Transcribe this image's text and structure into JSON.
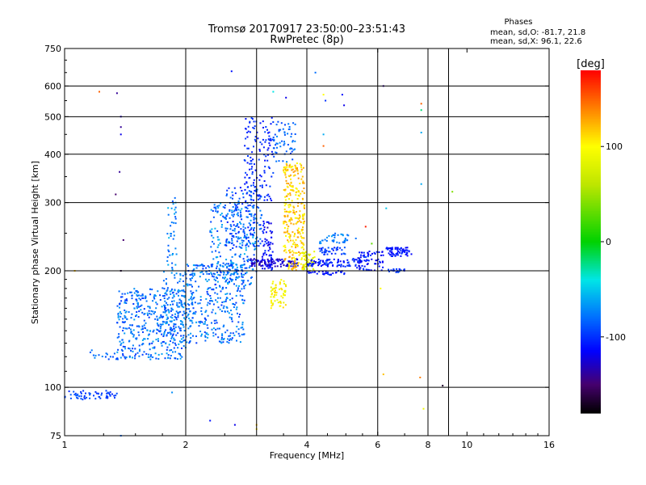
{
  "header": {
    "title_line1": "Tromsø 20170917 23:50:00–23:51:43",
    "title_line2": "RwPretec (8p)"
  },
  "phase_box": {
    "heading": "Phases",
    "line_o": "mean, sd,O: -81.7, 21.8",
    "line_x": "mean, sd,X:  96.1, 22.6"
  },
  "chart_data": {
    "type": "scatter",
    "xlabel": "Frequency [MHz]",
    "ylabel": "Stationary phase Virtual Height [km]",
    "x_scale": "log",
    "y_scale": "log",
    "xlim": [
      1,
      16
    ],
    "ylim": [
      75,
      750
    ],
    "x_ticks": [
      1,
      2,
      4,
      6,
      8,
      10,
      16
    ],
    "x_grid": [
      2,
      3,
      4,
      6,
      8,
      9
    ],
    "y_ticks": [
      75,
      100,
      200,
      300,
      400,
      500,
      600,
      750
    ],
    "y_grid": [
      100,
      200,
      300,
      400,
      500,
      600
    ],
    "grid": true,
    "colorbar": {
      "label": "[deg]",
      "range": [
        -180,
        180
      ],
      "ticks": [
        100,
        0,
        -100
      ]
    },
    "clusters": [
      {
        "name": "",
        "x": [
          1.0,
          1.35
        ],
        "y": [
          93,
          98
        ],
        "phase": [
          -105,
          -85
        ],
        "n": 60
      },
      {
        "name": "",
        "x": [
          1.1,
          1.35
        ],
        "y": [
          118,
          125
        ],
        "phase": [
          -95,
          -70
        ],
        "n": 15
      },
      {
        "name": "",
        "x": [
          1.35,
          2.0
        ],
        "y": [
          118,
          180
        ],
        "phase": [
          -100,
          -60
        ],
        "n": 420
      },
      {
        "name": "",
        "x": [
          1.75,
          2.1
        ],
        "y": [
          130,
          200
        ],
        "phase": [
          -95,
          -60
        ],
        "n": 120
      },
      {
        "name": "",
        "x": [
          1.8,
          1.9
        ],
        "y": [
          200,
          310
        ],
        "phase": [
          -90,
          -55
        ],
        "n": 40
      },
      {
        "name": "",
        "x": [
          2.0,
          2.8
        ],
        "y": [
          130,
          210
        ],
        "phase": [
          -100,
          -60
        ],
        "n": 320
      },
      {
        "name": "",
        "x": [
          2.3,
          3.0
        ],
        "y": [
          180,
          300
        ],
        "phase": [
          -100,
          -55
        ],
        "n": 220
      },
      {
        "name": "",
        "x": [
          2.5,
          3.1
        ],
        "y": [
          230,
          330
        ],
        "phase": [
          -110,
          -70
        ],
        "n": 160
      },
      {
        "name": "",
        "x": [
          2.8,
          3.3
        ],
        "y": [
          300,
          500
        ],
        "phase": [
          -115,
          -90
        ],
        "n": 140
      },
      {
        "name": "",
        "x": [
          2.9,
          3.8
        ],
        "y": [
          205,
          215
        ],
        "phase": [
          -140,
          -115
        ],
        "n": 110
      },
      {
        "name": "",
        "x": [
          3.1,
          3.3
        ],
        "y": [
          200,
          270
        ],
        "phase": [
          -130,
          -100
        ],
        "n": 60
      },
      {
        "name": "",
        "x": [
          3.3,
          3.75
        ],
        "y": [
          380,
          490
        ],
        "phase": [
          -95,
          -70
        ],
        "n": 60
      },
      {
        "name": "",
        "x": [
          3.25,
          3.55
        ],
        "y": [
          160,
          190
        ],
        "phase": [
          80,
          115
        ],
        "n": 60
      },
      {
        "name": "",
        "x": [
          3.5,
          3.95
        ],
        "y": [
          200,
          380
        ],
        "phase": [
          95,
          135
        ],
        "n": 300
      },
      {
        "name": "",
        "x": [
          3.9,
          4.2
        ],
        "y": [
          200,
          225
        ],
        "phase": [
          60,
          105
        ],
        "n": 50
      },
      {
        "name": "",
        "x": [
          4.0,
          5.5
        ],
        "y": [
          205,
          215
        ],
        "phase": [
          -120,
          -90
        ],
        "n": 90
      },
      {
        "name": "",
        "x": [
          4.3,
          5.0
        ],
        "y": [
          220,
          230
        ],
        "phase": [
          -110,
          -85
        ],
        "n": 40
      },
      {
        "name": "",
        "x": [
          4.3,
          5.3
        ],
        "y": [
          235,
          250
        ],
        "phase": [
          -85,
          -60
        ],
        "n": 40
      },
      {
        "name": "",
        "x": [
          4.0,
          5.0
        ],
        "y": [
          195,
          200
        ],
        "phase": [
          -120,
          -100
        ],
        "n": 30
      },
      {
        "name": "",
        "x": [
          5.3,
          6.2
        ],
        "y": [
          200,
          225
        ],
        "phase": [
          -125,
          -95
        ],
        "n": 70
      },
      {
        "name": "",
        "x": [
          6.3,
          7.3
        ],
        "y": [
          218,
          230
        ],
        "phase": [
          -120,
          -100
        ],
        "n": 70
      },
      {
        "name": "",
        "x": [
          6.3,
          7.0
        ],
        "y": [
          198,
          202
        ],
        "phase": [
          -110,
          -90
        ],
        "n": 20
      }
    ],
    "isolated_points": [
      {
        "x": 1.22,
        "y": 580,
        "phase": 150
      },
      {
        "x": 1.35,
        "y": 575,
        "phase": -140
      },
      {
        "x": 1.38,
        "y": 500,
        "phase": -130
      },
      {
        "x": 1.38,
        "y": 470,
        "phase": -140
      },
      {
        "x": 1.38,
        "y": 450,
        "phase": -120
      },
      {
        "x": 1.37,
        "y": 360,
        "phase": -140
      },
      {
        "x": 1.34,
        "y": 315,
        "phase": -150
      },
      {
        "x": 1.4,
        "y": 240,
        "phase": -150
      },
      {
        "x": 1.38,
        "y": 200,
        "phase": -165
      },
      {
        "x": 1.06,
        "y": 200,
        "phase": 120
      },
      {
        "x": 1.38,
        "y": 75,
        "phase": -80
      },
      {
        "x": 1.85,
        "y": 97,
        "phase": -70
      },
      {
        "x": 2.6,
        "y": 655,
        "phase": -110
      },
      {
        "x": 3.0,
        "y": 80,
        "phase": 120
      },
      {
        "x": 3.0,
        "y": 78,
        "phase": 110
      },
      {
        "x": 2.3,
        "y": 82,
        "phase": -110
      },
      {
        "x": 2.65,
        "y": 80,
        "phase": -120
      },
      {
        "x": 3.3,
        "y": 580,
        "phase": -40
      },
      {
        "x": 3.55,
        "y": 560,
        "phase": -120
      },
      {
        "x": 4.2,
        "y": 650,
        "phase": -80
      },
      {
        "x": 4.4,
        "y": 570,
        "phase": 100
      },
      {
        "x": 4.45,
        "y": 550,
        "phase": -100
      },
      {
        "x": 4.9,
        "y": 570,
        "phase": -110
      },
      {
        "x": 4.95,
        "y": 535,
        "phase": -120
      },
      {
        "x": 6.2,
        "y": 600,
        "phase": -140
      },
      {
        "x": 7.7,
        "y": 540,
        "phase": 150
      },
      {
        "x": 7.7,
        "y": 520,
        "phase": -20
      },
      {
        "x": 7.7,
        "y": 455,
        "phase": -60
      },
      {
        "x": 7.7,
        "y": 335,
        "phase": -60
      },
      {
        "x": 9.2,
        "y": 320,
        "phase": 40
      },
      {
        "x": 4.4,
        "y": 450,
        "phase": -60
      },
      {
        "x": 4.4,
        "y": 420,
        "phase": 150
      },
      {
        "x": 5.6,
        "y": 260,
        "phase": 170
      },
      {
        "x": 5.8,
        "y": 235,
        "phase": 30
      },
      {
        "x": 6.3,
        "y": 290,
        "phase": -50
      },
      {
        "x": 6.1,
        "y": 180,
        "phase": 100
      },
      {
        "x": 6.2,
        "y": 108,
        "phase": 120
      },
      {
        "x": 7.65,
        "y": 106,
        "phase": 140
      },
      {
        "x": 7.8,
        "y": 88,
        "phase": 90
      },
      {
        "x": 8.7,
        "y": 101,
        "phase": -170
      }
    ]
  }
}
